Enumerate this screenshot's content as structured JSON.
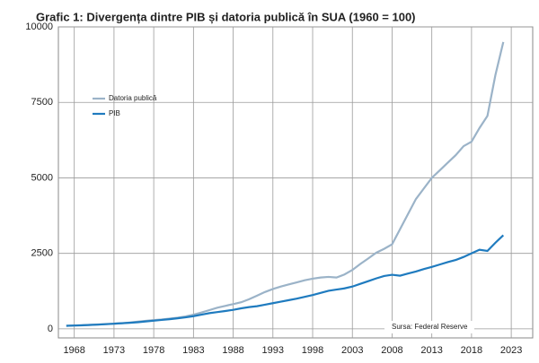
{
  "chart_data": {
    "type": "line",
    "title": "Grafic 1: Divergența dintre PIB și datoria publică în SUA (1960 = 100)",
    "annotation": "Sursa: Federal Reserve",
    "x": [
      1967,
      1968,
      1969,
      1970,
      1971,
      1972,
      1973,
      1974,
      1975,
      1976,
      1977,
      1978,
      1979,
      1980,
      1981,
      1982,
      1983,
      1984,
      1985,
      1986,
      1987,
      1988,
      1989,
      1990,
      1991,
      1992,
      1993,
      1994,
      1995,
      1996,
      1997,
      1998,
      1999,
      2000,
      2001,
      2002,
      2003,
      2004,
      2005,
      2006,
      2007,
      2008,
      2009,
      2010,
      2011,
      2012,
      2013,
      2014,
      2015,
      2016,
      2017,
      2018,
      2019,
      2020,
      2021,
      2022
    ],
    "series": [
      {
        "name": "Datoria publică",
        "color": "#9bb3c8",
        "values": [
          100,
          110,
          115,
          130,
          145,
          160,
          170,
          185,
          210,
          240,
          265,
          290,
          310,
          340,
          370,
          410,
          470,
          540,
          620,
          700,
          760,
          820,
          880,
          980,
          1100,
          1220,
          1320,
          1400,
          1470,
          1540,
          1610,
          1660,
          1700,
          1720,
          1700,
          1800,
          1950,
          2150,
          2330,
          2520,
          2650,
          2800,
          3300,
          3800,
          4300,
          4650,
          5000,
          5250,
          5500,
          5750,
          6050,
          6200,
          6650,
          7050,
          8400,
          9500
        ]
      },
      {
        "name": "PIB",
        "color": "#1f7bbf",
        "values": [
          100,
          110,
          120,
          130,
          140,
          155,
          170,
          185,
          200,
          220,
          245,
          270,
          295,
          320,
          350,
          380,
          420,
          470,
          520,
          555,
          590,
          630,
          680,
          720,
          750,
          800,
          850,
          900,
          950,
          1000,
          1060,
          1120,
          1190,
          1260,
          1300,
          1340,
          1400,
          1490,
          1580,
          1670,
          1750,
          1790,
          1760,
          1830,
          1900,
          1980,
          2050,
          2130,
          2210,
          2280,
          2380,
          2500,
          2620,
          2580,
          2850,
          3100
        ]
      }
    ],
    "xlim": [
      1966,
      2025.7
    ],
    "xticks": [
      1968,
      1973,
      1978,
      1983,
      1988,
      1993,
      1998,
      2003,
      2008,
      2013,
      2018,
      2023
    ],
    "ylim": [
      -300,
      10000
    ],
    "yticks": [
      0,
      2500,
      5000,
      7500,
      10000
    ],
    "grid": true,
    "legend": "upper-left"
  }
}
